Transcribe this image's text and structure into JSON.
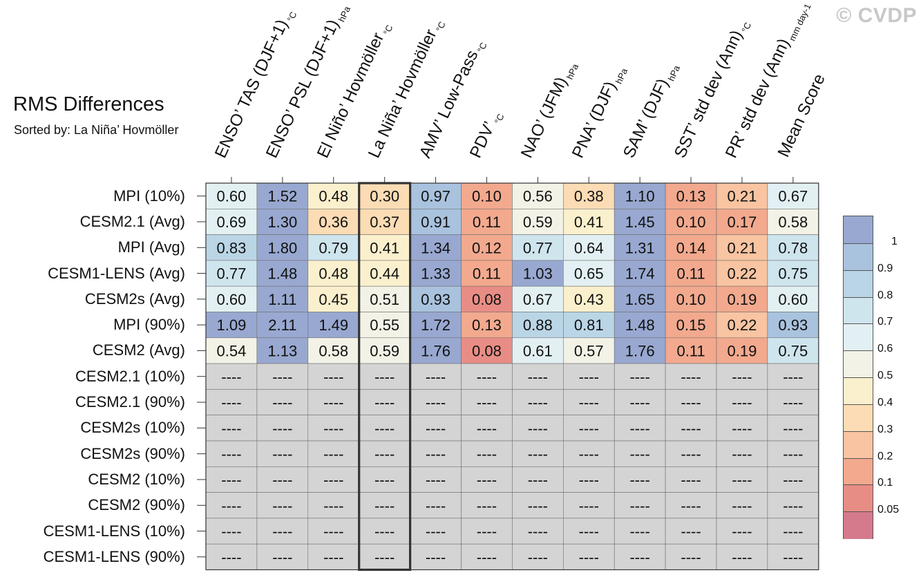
{
  "watermark": "© CVDP",
  "chart_data": {
    "type": "heatmap",
    "title": "RMS Differences",
    "subtitle": "Sorted by: La Niña’ Hovmöller",
    "highlighted_column": "La Niña’ Hovmöller",
    "columns": [
      {
        "name": "ENSO’ TAS (DJF+1)",
        "unit": "°C"
      },
      {
        "name": "ENSO’ PSL (DJF+1)",
        "unit": "hPa"
      },
      {
        "name": "El Niño’ Hovmöller",
        "unit": "°C"
      },
      {
        "name": "La Niña’ Hovmöller",
        "unit": "°C"
      },
      {
        "name": "AMV’ Low-Pass",
        "unit": "°C"
      },
      {
        "name": "PDV’",
        "unit": "°C"
      },
      {
        "name": "NAO’ (JFM)",
        "unit": "hPa"
      },
      {
        "name": "PNA’ (DJF)",
        "unit": "hPa"
      },
      {
        "name": "SAM’ (DJF)",
        "unit": "hPa"
      },
      {
        "name": "SST’ std dev (Ann)",
        "unit": "°C"
      },
      {
        "name": "PR’ std dev (Ann)",
        "unit": "mm day-1"
      },
      {
        "name": "Mean Score",
        "unit": ""
      }
    ],
    "rows": [
      {
        "label": "MPI (10%)",
        "values": [
          0.6,
          1.52,
          0.48,
          0.3,
          0.97,
          0.1,
          0.56,
          0.38,
          1.1,
          0.13,
          0.21,
          0.67
        ]
      },
      {
        "label": "CESM2.1 (Avg)",
        "values": [
          0.69,
          1.3,
          0.36,
          0.37,
          0.91,
          0.11,
          0.59,
          0.41,
          1.45,
          0.1,
          0.17,
          0.58
        ]
      },
      {
        "label": "MPI (Avg)",
        "values": [
          0.83,
          1.8,
          0.79,
          0.41,
          1.34,
          0.12,
          0.77,
          0.64,
          1.31,
          0.14,
          0.21,
          0.78
        ]
      },
      {
        "label": "CESM1-LENS (Avg)",
        "values": [
          0.77,
          1.48,
          0.48,
          0.44,
          1.33,
          0.11,
          1.03,
          0.65,
          1.74,
          0.11,
          0.22,
          0.75
        ]
      },
      {
        "label": "CESM2s (Avg)",
        "values": [
          0.6,
          1.11,
          0.45,
          0.51,
          0.93,
          0.08,
          0.67,
          0.43,
          1.65,
          0.1,
          0.19,
          0.6
        ]
      },
      {
        "label": "MPI (90%)",
        "values": [
          1.09,
          2.11,
          1.49,
          0.55,
          1.72,
          0.13,
          0.88,
          0.81,
          1.48,
          0.15,
          0.22,
          0.93
        ]
      },
      {
        "label": "CESM2 (Avg)",
        "values": [
          0.54,
          1.13,
          0.58,
          0.59,
          1.76,
          0.08,
          0.61,
          0.57,
          1.76,
          0.11,
          0.19,
          0.75
        ]
      },
      {
        "label": "CESM2.1 (10%)",
        "values": null
      },
      {
        "label": "CESM2.1 (90%)",
        "values": null
      },
      {
        "label": "CESM2s (10%)",
        "values": null
      },
      {
        "label": "CESM2s (90%)",
        "values": null
      },
      {
        "label": "CESM2 (10%)",
        "values": null
      },
      {
        "label": "CESM2 (90%)",
        "values": null
      },
      {
        "label": "CESM1-LENS (10%)",
        "values": null
      },
      {
        "label": "CESM1-LENS (90%)",
        "values": null
      }
    ],
    "missing_text": "----",
    "missing_color": "#d4d4d4",
    "colorbar": {
      "ticks": [
        "1",
        "0.9",
        "0.8",
        "0.7",
        "0.6",
        "0.5",
        "0.4",
        "0.3",
        "0.2",
        "0.1",
        "0.05"
      ],
      "colors_top_to_bottom": [
        "#98a8d0",
        "#a9c2de",
        "#bad5e6",
        "#cfe5ee",
        "#e3f0f3",
        "#f2f2e6",
        "#fbf0cd",
        "#fbdcb4",
        "#f8c4a1",
        "#f2a98e",
        "#e88d85",
        "#d47a8c"
      ]
    }
  }
}
